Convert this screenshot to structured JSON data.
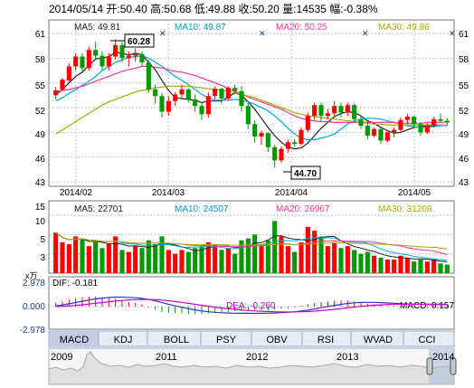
{
  "header": {
    "quote": "2014/05/14 开:50.40  高:50.68  低:49.88  收:50.20  量:14535  幅:-0.38%"
  },
  "main_chart": {
    "left_ticks": [
      "61",
      "58",
      "55",
      "52",
      "49",
      "46",
      "43"
    ],
    "right_ticks": [
      "61",
      "58",
      "55",
      "52",
      "49",
      "46",
      "43"
    ],
    "x_labels": [
      "2014/02",
      "2014/03",
      "2014/04",
      "2014/05"
    ],
    "ma_labels": [
      "MA5: 49.81",
      "MA10: 49.87",
      "MA20: 50.25",
      "MA30: 49.86"
    ],
    "high_callout": "60.28",
    "low_callout": "44.70",
    "colors": {
      "up": "#ff0000",
      "down": "#009900",
      "ma5": "#222222",
      "ma10": "#00aadd",
      "ma20": "#ff3399",
      "ma30": "#aaaa00",
      "grid": "#bbbbcc",
      "label": "#000066"
    }
  },
  "volume_chart": {
    "ticks": [
      "15",
      "10",
      "5",
      "3"
    ],
    "unit": "x万",
    "ma_labels": [
      "MA5: 22701",
      "MA10: 24507",
      "MA20: 26967",
      "MA30: 31208"
    ]
  },
  "macd_chart": {
    "ticks": [
      "2.978",
      "0.000",
      "-2.978"
    ],
    "dif_label": "DIF: -0.181",
    "dea_label": "DEA: -0.260",
    "macd_label": "MACD: 0.157"
  },
  "tabs": [
    "MACD",
    "KDJ",
    "BOLL",
    "PSY",
    "OBV",
    "RSI",
    "WVAD",
    "CCI"
  ],
  "active_tab": "MACD",
  "timeline": {
    "years": [
      "2009",
      "2011",
      "2012",
      "2013",
      "2014"
    ]
  },
  "chart_data": {
    "type": "candlestick",
    "title": "2014/05/14 开:50.40 高:50.68 低:49.88 收:50.20 量:14535 幅:-0.38%",
    "xlabel": "",
    "ylabel": "",
    "ylim": [
      43,
      61
    ],
    "x_ticks": [
      "2014/02",
      "2014/03",
      "2014/04",
      "2014/05"
    ],
    "candles": [
      [
        53.5,
        54.5,
        53.0,
        54.1
      ],
      [
        54.2,
        55.6,
        54.0,
        55.4
      ],
      [
        55.3,
        57.4,
        55.0,
        57.0
      ],
      [
        57.0,
        58.6,
        56.5,
        58.2
      ],
      [
        58.2,
        58.6,
        56.4,
        56.8
      ],
      [
        56.8,
        59.4,
        56.5,
        59.0
      ],
      [
        59.0,
        60.0,
        57.8,
        58.3
      ],
      [
        58.3,
        58.8,
        56.6,
        57.0
      ],
      [
        57.0,
        58.6,
        56.5,
        58.2
      ],
      [
        58.2,
        60.28,
        57.8,
        59.6
      ],
      [
        59.6,
        60.0,
        57.5,
        58.0
      ],
      [
        58.0,
        58.8,
        57.0,
        58.3
      ],
      [
        58.3,
        59.2,
        57.6,
        58.5
      ],
      [
        58.5,
        58.8,
        57.0,
        57.5
      ],
      [
        57.5,
        57.8,
        53.8,
        54.2
      ],
      [
        54.2,
        54.8,
        52.5,
        53.4
      ],
      [
        53.4,
        53.8,
        50.8,
        51.5
      ],
      [
        51.5,
        53.4,
        51.0,
        52.8
      ],
      [
        52.8,
        53.9,
        52.2,
        53.6
      ],
      [
        53.6,
        54.8,
        53.2,
        54.2
      ],
      [
        54.2,
        54.4,
        52.6,
        53.0
      ],
      [
        53.0,
        53.6,
        51.5,
        52.2
      ],
      [
        52.2,
        52.6,
        50.5,
        51.2
      ],
      [
        51.2,
        53.8,
        50.8,
        53.4
      ],
      [
        53.4,
        54.6,
        53.0,
        54.3
      ],
      [
        54.3,
        54.4,
        52.4,
        53.1
      ],
      [
        53.1,
        54.6,
        52.8,
        54.4
      ],
      [
        54.4,
        54.8,
        53.6,
        54.0
      ],
      [
        54.0,
        54.6,
        51.5,
        52.2
      ],
      [
        52.2,
        52.6,
        49.4,
        50.0
      ],
      [
        50.0,
        50.5,
        47.8,
        48.5
      ],
      [
        48.5,
        49.2,
        47.5,
        48.9
      ],
      [
        48.9,
        49.0,
        46.6,
        47.2
      ],
      [
        47.2,
        47.5,
        44.7,
        45.6
      ],
      [
        45.6,
        47.3,
        45.3,
        47.0
      ],
      [
        47.0,
        48.1,
        46.5,
        47.8
      ],
      [
        47.8,
        48.2,
        47.2,
        47.6
      ],
      [
        47.6,
        49.6,
        47.4,
        49.3
      ],
      [
        49.3,
        51.4,
        49.0,
        51.0
      ],
      [
        51.0,
        52.6,
        50.5,
        52.3
      ],
      [
        52.3,
        52.6,
        50.4,
        51.0
      ],
      [
        51.0,
        51.8,
        50.6,
        51.3
      ],
      [
        51.3,
        52.8,
        51.0,
        52.2
      ],
      [
        52.2,
        52.6,
        50.8,
        51.4
      ],
      [
        51.4,
        52.6,
        51.0,
        52.3
      ],
      [
        52.3,
        52.5,
        50.2,
        50.6
      ],
      [
        50.6,
        51.0,
        49.4,
        49.8
      ],
      [
        49.8,
        50.4,
        48.2,
        48.6
      ],
      [
        48.6,
        49.6,
        48.4,
        49.4
      ],
      [
        49.4,
        49.6,
        47.6,
        48.0
      ],
      [
        48.0,
        49.2,
        47.8,
        49.0
      ],
      [
        49.0,
        49.6,
        48.4,
        49.3
      ],
      [
        49.3,
        50.8,
        49.1,
        50.5
      ],
      [
        50.5,
        51.2,
        50.0,
        50.9
      ],
      [
        50.9,
        51.0,
        49.6,
        50.0
      ],
      [
        50.0,
        50.3,
        48.6,
        49.0
      ],
      [
        49.0,
        50.1,
        48.8,
        49.8
      ],
      [
        49.8,
        50.9,
        49.6,
        50.6
      ],
      [
        50.6,
        51.3,
        50.2,
        50.4
      ],
      [
        50.4,
        50.68,
        49.88,
        50.2
      ]
    ],
    "ma_series": {
      "MA5": [
        53.6,
        54.2,
        55.0,
        55.8,
        56.3,
        57.1,
        57.9,
        58.0,
        58.2,
        58.7,
        58.6,
        58.4,
        58.6,
        58.4,
        57.5,
        56.6,
        55.3,
        54.1,
        53.2,
        53.1,
        53.0,
        52.9,
        52.6,
        52.8,
        52.8,
        52.8,
        53.3,
        53.8,
        53.5,
        52.7,
        51.8,
        50.7,
        49.6,
        48.6,
        47.8,
        47.2,
        47.0,
        47.1,
        47.7,
        48.6,
        49.5,
        50.2,
        50.9,
        51.3,
        51.5,
        51.4,
        51.0,
        50.4,
        50.1,
        49.6,
        49.2,
        48.9,
        49.0,
        49.3,
        49.6,
        49.7,
        49.8,
        49.8,
        49.9,
        49.81
      ],
      "MA10": [
        52.8,
        53.2,
        53.7,
        54.2,
        54.7,
        55.2,
        55.8,
        56.5,
        57.0,
        57.5,
        57.8,
        58.1,
        58.2,
        58.3,
        58.0,
        57.5,
        57.0,
        56.4,
        55.8,
        55.3,
        54.8,
        54.2,
        53.6,
        53.2,
        52.9,
        52.9,
        52.9,
        53.0,
        52.9,
        52.7,
        52.4,
        52.0,
        51.6,
        51.0,
        50.3,
        49.5,
        48.8,
        48.3,
        48.1,
        48.1,
        48.3,
        48.5,
        48.8,
        49.4,
        50.0,
        50.4,
        50.6,
        50.7,
        50.7,
        50.6,
        50.4,
        50.2,
        50.0,
        49.8,
        49.7,
        49.6,
        49.6,
        49.7,
        49.8,
        49.87
      ],
      "MA20": [
        54.0,
        54.1,
        54.2,
        54.4,
        54.6,
        54.9,
        55.2,
        55.5,
        55.8,
        56.1,
        56.4,
        56.6,
        56.8,
        57.0,
        57.0,
        56.9,
        56.8,
        56.6,
        56.4,
        56.3,
        56.1,
        55.9,
        55.6,
        55.3,
        55.0,
        54.7,
        54.3,
        54.0,
        53.6,
        53.3,
        53.0,
        52.7,
        52.4,
        52.1,
        51.8,
        51.4,
        51.0,
        50.7,
        50.5,
        50.4,
        50.3,
        50.3,
        50.2,
        50.2,
        50.2,
        50.2,
        50.2,
        50.2,
        50.2,
        50.2,
        50.2,
        50.2,
        50.1,
        50.1,
        50.1,
        50.1,
        50.2,
        50.2,
        50.2,
        50.25
      ],
      "MA30": [
        48.8,
        49.3,
        49.8,
        50.3,
        50.8,
        51.3,
        51.8,
        52.3,
        52.7,
        53.0,
        53.3,
        53.6,
        53.9,
        54.1,
        54.2,
        54.4,
        54.5,
        54.6,
        54.6,
        54.6,
        54.6,
        54.5,
        54.4,
        54.3,
        54.2,
        54.1,
        54.0,
        53.8,
        53.6,
        53.4,
        53.2,
        52.9,
        52.6,
        52.3,
        52.0,
        51.7,
        51.4,
        51.2,
        51.0,
        50.9,
        50.8,
        50.7,
        50.6,
        50.5,
        50.4,
        50.3,
        50.2,
        50.1,
        50.0,
        50.0,
        49.9,
        49.9,
        49.9,
        49.9,
        49.9,
        49.9,
        49.9,
        49.9,
        49.9,
        49.86
      ]
    },
    "volume": [
      [
        10.5,
        1
      ],
      [
        8.0,
        1
      ],
      [
        7.5,
        1
      ],
      [
        9.5,
        1
      ],
      [
        9.0,
        0
      ],
      [
        7.0,
        1
      ],
      [
        8.0,
        0
      ],
      [
        6.5,
        0
      ],
      [
        7.5,
        1
      ],
      [
        9.5,
        1
      ],
      [
        6.0,
        0
      ],
      [
        5.5,
        1
      ],
      [
        7.0,
        1
      ],
      [
        6.5,
        0
      ],
      [
        8.5,
        0
      ],
      [
        7.5,
        0
      ],
      [
        9.5,
        0
      ],
      [
        6.0,
        1
      ],
      [
        5.0,
        1
      ],
      [
        6.0,
        1
      ],
      [
        5.5,
        0
      ],
      [
        6.5,
        0
      ],
      [
        7.0,
        0
      ],
      [
        8.0,
        1
      ],
      [
        7.5,
        1
      ],
      [
        6.0,
        0
      ],
      [
        6.5,
        1
      ],
      [
        5.0,
        0
      ],
      [
        8.5,
        0
      ],
      [
        9.0,
        0
      ],
      [
        10.0,
        0
      ],
      [
        7.0,
        1
      ],
      [
        8.5,
        0
      ],
      [
        13.5,
        0
      ],
      [
        9.5,
        1
      ],
      [
        7.0,
        1
      ],
      [
        5.5,
        0
      ],
      [
        8.0,
        1
      ],
      [
        12.0,
        1
      ],
      [
        11.0,
        1
      ],
      [
        9.5,
        0
      ],
      [
        7.0,
        1
      ],
      [
        8.0,
        1
      ],
      [
        6.5,
        0
      ],
      [
        7.0,
        1
      ],
      [
        6.0,
        0
      ],
      [
        5.0,
        0
      ],
      [
        5.5,
        0
      ],
      [
        4.5,
        1
      ],
      [
        4.0,
        0
      ],
      [
        3.5,
        1
      ],
      [
        3.5,
        1
      ],
      [
        4.5,
        1
      ],
      [
        4.0,
        1
      ],
      [
        3.0,
        0
      ],
      [
        3.5,
        0
      ],
      [
        3.0,
        1
      ],
      [
        3.5,
        1
      ],
      [
        2.5,
        0
      ],
      [
        2.2,
        0
      ]
    ],
    "macd": [
      0.5,
      0.7,
      0.9,
      1.1,
      1.2,
      1.3,
      1.3,
      1.2,
      1.1,
      1.0,
      0.8,
      0.6,
      0.5,
      0.3,
      -0.1,
      -0.4,
      -0.7,
      -0.8,
      -0.9,
      -0.9,
      -1.0,
      -1.0,
      -1.0,
      -0.9,
      -0.8,
      -0.8,
      -0.7,
      -0.6,
      -0.6,
      -0.6,
      -0.6,
      -0.5,
      -0.5,
      -0.4,
      -0.3,
      -0.2,
      -0.1,
      0.1,
      0.3,
      0.5,
      0.6,
      0.7,
      0.8,
      0.8,
      0.8,
      0.7,
      0.6,
      0.4,
      0.3,
      0.2,
      0.1,
      0.1,
      0.0,
      0.0,
      0.1,
      0.1,
      0.1,
      0.2,
      0.2,
      0.157
    ]
  }
}
